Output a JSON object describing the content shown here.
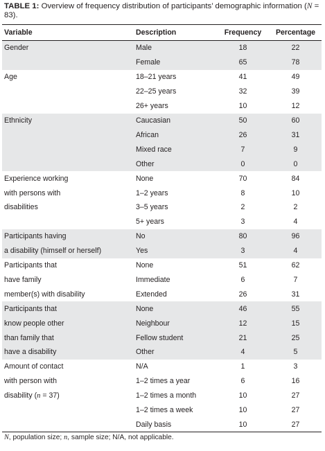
{
  "caption": {
    "label": "TABLE 1:",
    "text_a": " Overview of frequency distribution of participants’ demographic information (",
    "n_symbol": "N",
    "text_b": " = 83)."
  },
  "headers": [
    "Variable",
    "Description",
    "Frequency",
    "Percentage"
  ],
  "groups": [
    {
      "shaded": true,
      "lines": [
        "Gender",
        ""
      ],
      "rows": [
        [
          "Male",
          "18",
          "22"
        ],
        [
          "Female",
          "65",
          "78"
        ]
      ]
    },
    {
      "shaded": false,
      "lines": [
        "Age",
        "",
        ""
      ],
      "rows": [
        [
          "18–21 years",
          "41",
          "49"
        ],
        [
          "22–25 years",
          "32",
          "39"
        ],
        [
          "26+ years",
          "10",
          "12"
        ]
      ]
    },
    {
      "shaded": true,
      "lines": [
        "Ethnicity",
        "",
        "",
        ""
      ],
      "rows": [
        [
          "Caucasian",
          "50",
          "60"
        ],
        [
          "African",
          "26",
          "31"
        ],
        [
          "Mixed race",
          "7",
          "9"
        ],
        [
          "Other",
          "0",
          "0"
        ]
      ]
    },
    {
      "shaded": false,
      "lines": [
        "Experience working",
        "with persons with",
        "disabilities",
        ""
      ],
      "rows": [
        [
          "None",
          "70",
          "84"
        ],
        [
          "1–2 years",
          "8",
          "10"
        ],
        [
          "3–5 years",
          "2",
          "2"
        ],
        [
          "5+ years",
          "3",
          "4"
        ]
      ]
    },
    {
      "shaded": true,
      "lines": [
        "Participants having",
        "a disability (himself or herself)"
      ],
      "rows": [
        [
          "No",
          "80",
          "96"
        ],
        [
          "Yes",
          "3",
          "4"
        ]
      ]
    },
    {
      "shaded": false,
      "lines": [
        "Participants that",
        "have family",
        "member(s) with disability"
      ],
      "rows": [
        [
          "None",
          "51",
          "62"
        ],
        [
          "Immediate",
          "6",
          "7"
        ],
        [
          "Extended",
          "26",
          "31"
        ]
      ]
    },
    {
      "shaded": true,
      "lines": [
        "Participants that",
        "know people other",
        "than family that",
        "have a disability"
      ],
      "rows": [
        [
          "None",
          "46",
          "55"
        ],
        [
          "Neighbour",
          "12",
          "15"
        ],
        [
          "Fellow student",
          "21",
          "25"
        ],
        [
          "Other",
          "4",
          "5"
        ]
      ]
    },
    {
      "shaded": false,
      "lines": [
        "Amount of contact",
        "with person with",
        "disability (n = 37)",
        "",
        ""
      ],
      "rows": [
        [
          "N/A",
          "1",
          "3"
        ],
        [
          "1–2 times a year",
          "6",
          "16"
        ],
        [
          "1–2 times a month",
          "10",
          "27"
        ],
        [
          "1–2 times a week",
          "10",
          "27"
        ],
        [
          "Daily basis",
          "10",
          "27"
        ]
      ]
    }
  ],
  "footnote": {
    "N_symbol": "N",
    "N_text": ", population size; ",
    "n_symbol": "n",
    "n_text": ", sample size; N/A, not applicable."
  }
}
